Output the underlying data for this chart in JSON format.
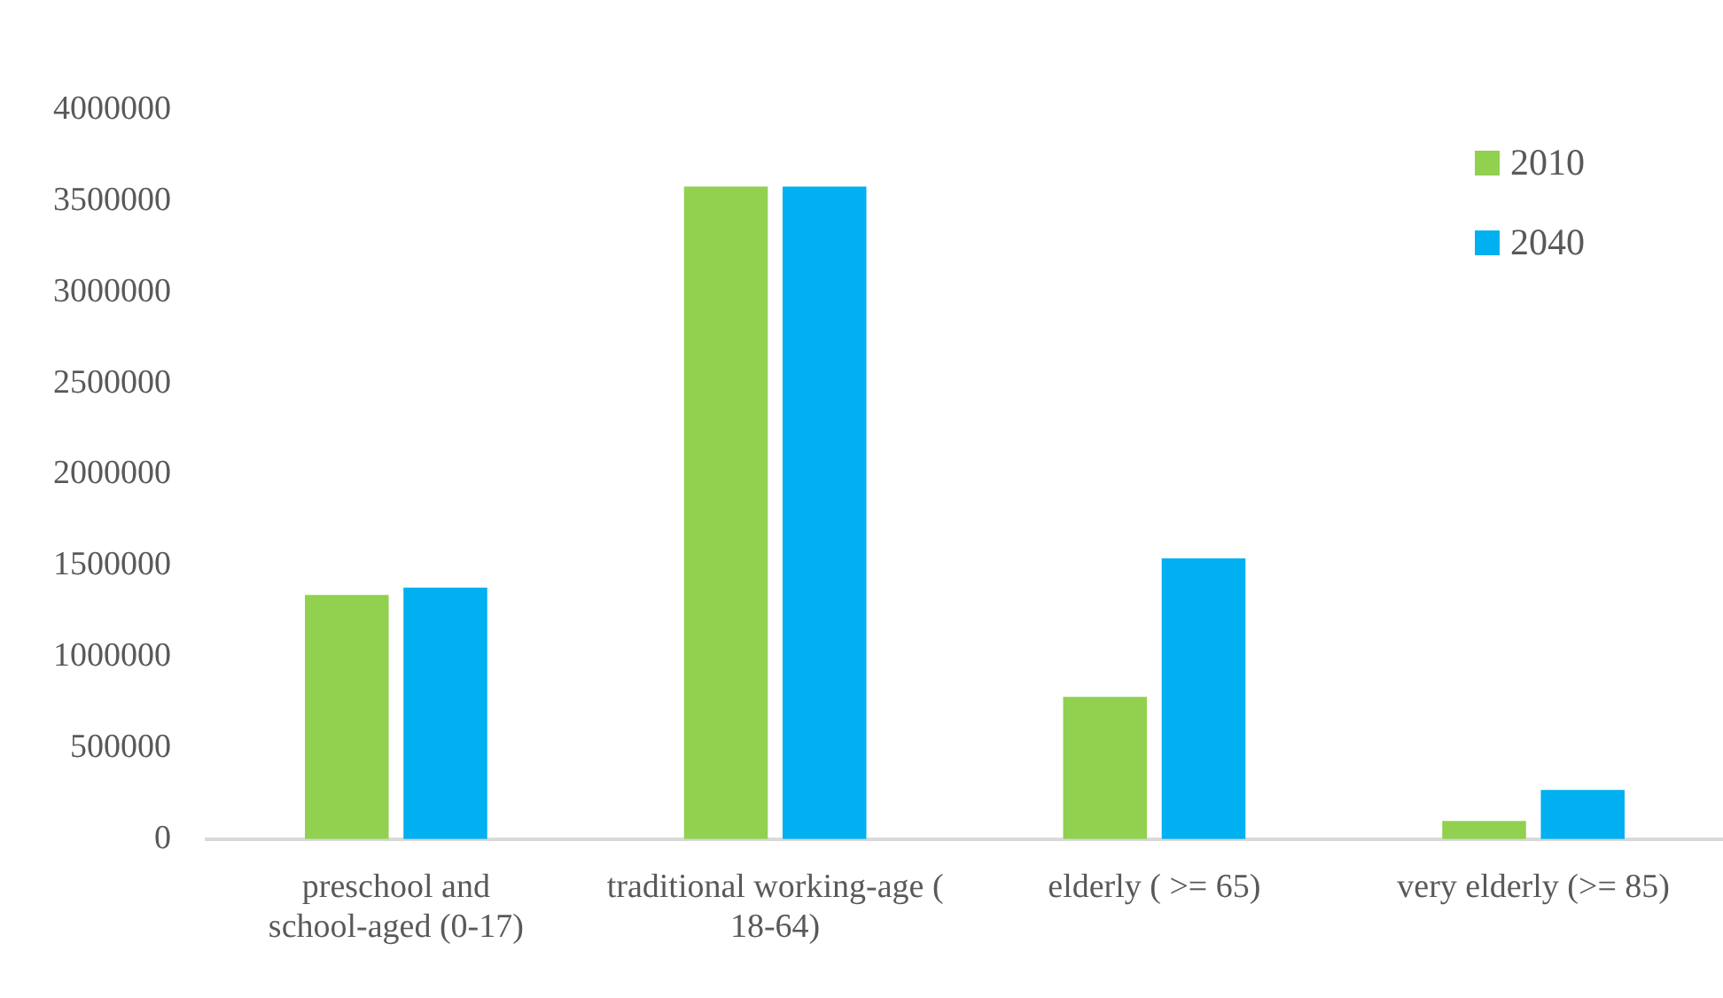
{
  "chart_data": {
    "type": "bar",
    "categories": [
      "preschool and school-aged (0-17)",
      "traditional working-age ( 18-64)",
      "elderly ( >= 65)",
      "very elderly (>= 85)"
    ],
    "series": [
      {
        "name": "2010",
        "color": "#92d050",
        "values": [
          1340000,
          3580000,
          780000,
          100000
        ]
      },
      {
        "name": "2040",
        "color": "#00b0f0",
        "values": [
          1380000,
          3580000,
          1540000,
          270000
        ]
      }
    ],
    "ylim": [
      0,
      4000000
    ],
    "yticks": [
      0,
      500000,
      1000000,
      1500000,
      2000000,
      2500000,
      3000000,
      3500000,
      4000000
    ],
    "grid": false,
    "legend": "top right"
  }
}
